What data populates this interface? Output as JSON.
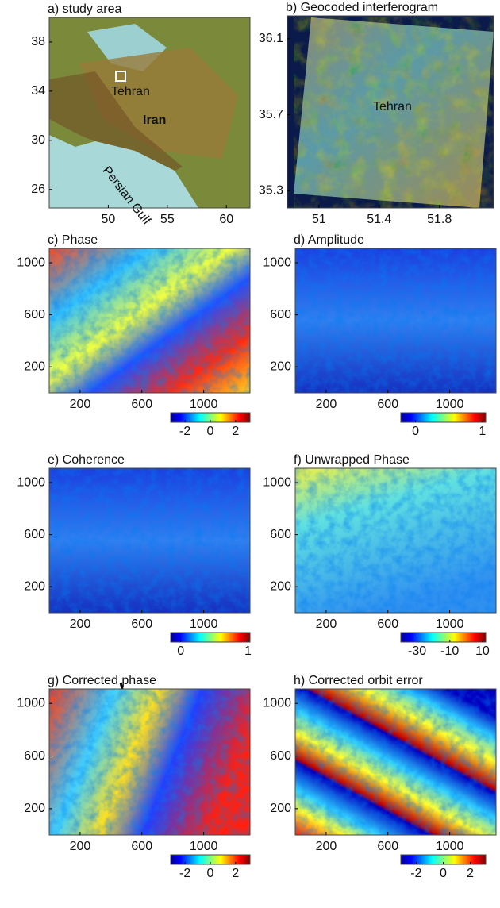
{
  "panels": [
    {
      "title": "a) study area",
      "xlim": [
        45,
        62
      ],
      "ylim": [
        24.5,
        40
      ],
      "xticks": [
        50,
        55,
        60
      ],
      "yticks": [
        26,
        30,
        34,
        38
      ],
      "labels": [
        "Tehran",
        "Iran",
        "Persian Gulf"
      ]
    },
    {
      "title": "b) Geocoded interferogram",
      "xlim": [
        50.79,
        52.16
      ],
      "ylim": [
        35.21,
        36.22
      ],
      "xticks": [
        51,
        51.4,
        51.8
      ],
      "yticks": [
        35.3,
        35.7,
        36.1
      ],
      "labels": [
        "Tehran"
      ]
    },
    {
      "title": "c) Phase",
      "xlim": [
        0,
        1300
      ],
      "ylim": [
        0,
        1110
      ],
      "xticks": [
        200,
        600,
        1000
      ],
      "yticks": [
        200,
        600,
        1000
      ],
      "clim": [
        -3.14,
        3.14
      ],
      "cticks": [
        -2,
        0,
        2
      ]
    },
    {
      "title": "d) Amplitude",
      "xlim": [
        0,
        1300
      ],
      "ylim": [
        0,
        1110
      ],
      "xticks": [
        200,
        600,
        1000
      ],
      "yticks": [
        200,
        600,
        1000
      ],
      "clim": [
        -0.22,
        1.05
      ],
      "cticks": [
        0,
        1
      ]
    },
    {
      "title": "e) Coherence",
      "xlim": [
        0,
        1300
      ],
      "ylim": [
        0,
        1110
      ],
      "xticks": [
        200,
        600,
        1000
      ],
      "yticks": [
        200,
        600,
        1000
      ],
      "clim": [
        -0.15,
        1.03
      ],
      "cticks": [
        0,
        1
      ]
    },
    {
      "title": "f) Unwrapped Phase",
      "xlim": [
        0,
        1300
      ],
      "ylim": [
        0,
        1110
      ],
      "xticks": [
        200,
        600,
        1000
      ],
      "yticks": [
        200,
        600,
        1000
      ],
      "clim": [
        -40,
        12
      ],
      "cticks": [
        -30,
        -10,
        10
      ]
    },
    {
      "title": "g) Corrected phase",
      "xlim": [
        0,
        1300
      ],
      "ylim": [
        0,
        1110
      ],
      "xticks": [
        200,
        600,
        1000
      ],
      "yticks": [
        200,
        600,
        1000
      ],
      "clim": [
        -3.14,
        3.14
      ],
      "cticks": [
        -2,
        0,
        2
      ]
    },
    {
      "title": "h) Corrected orbit error",
      "xlim": [
        0,
        1300
      ],
      "ylim": [
        0,
        1110
      ],
      "xticks": [
        200,
        600,
        1000
      ],
      "yticks": [
        200,
        600,
        1000
      ],
      "clim": [
        -3.14,
        3.14
      ],
      "cticks": [
        -2,
        0,
        2
      ]
    }
  ]
}
